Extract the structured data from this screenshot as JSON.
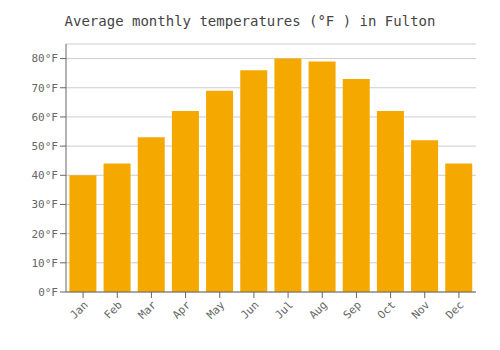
{
  "chart_data": {
    "type": "bar",
    "title": "Average monthly temperatures (°F ) in Fulton",
    "categories": [
      "Jan",
      "Feb",
      "Mar",
      "Apr",
      "May",
      "Jun",
      "Jul",
      "Aug",
      "Sep",
      "Oct",
      "Nov",
      "Dec"
    ],
    "values": [
      40,
      44,
      53,
      62,
      69,
      76,
      80,
      79,
      73,
      62,
      52,
      44
    ],
    "color": "#F5A800",
    "ylim": [
      0,
      85
    ],
    "yticks": [
      {
        "value": 0,
        "label": "0°F"
      },
      {
        "value": 10,
        "label": "10°F"
      },
      {
        "value": 20,
        "label": "20°F"
      },
      {
        "value": 30,
        "label": "30°F"
      },
      {
        "value": 40,
        "label": "40°F"
      },
      {
        "value": 50,
        "label": "50°F"
      },
      {
        "value": 60,
        "label": "60°F"
      },
      {
        "value": 70,
        "label": "70°F"
      },
      {
        "value": 80,
        "label": "80°F"
      }
    ],
    "grid": true
  }
}
